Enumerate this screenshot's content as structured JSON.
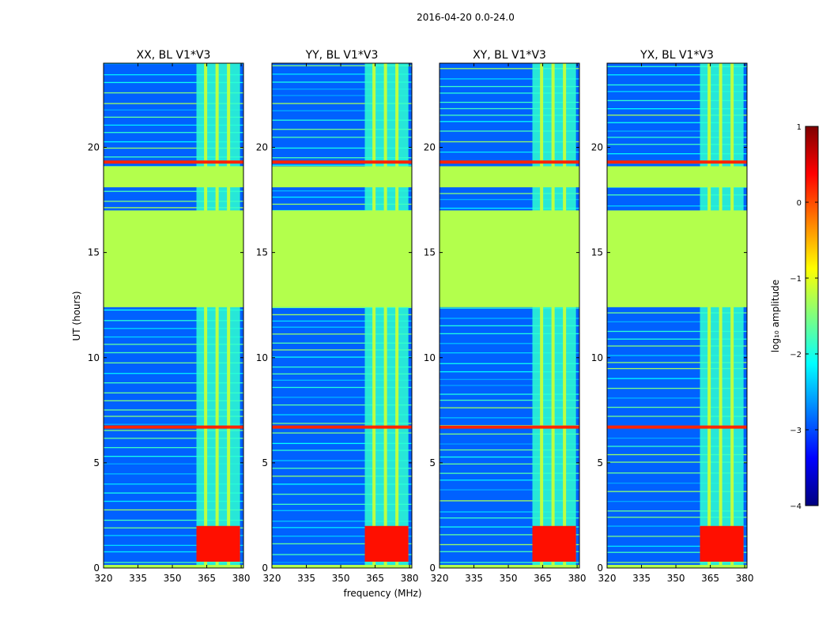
{
  "suptitle": "2016-04-20 0.0-24.0",
  "chart_data": {
    "type": "heatmap",
    "title": "2016-04-20 0.0-24.0",
    "xlabel": "frequency (MHz)",
    "ylabel": "UT (hours)",
    "xlim": [
      320,
      381
    ],
    "ylim": [
      0,
      24
    ],
    "x_ticks": [
      320,
      335,
      350,
      365,
      380
    ],
    "y_ticks": [
      0,
      5,
      10,
      15,
      20
    ],
    "panels": [
      {
        "title": "XX, BL V1*V3",
        "bright_start_hour": 0.3
      },
      {
        "title": "YY, BL V1*V3",
        "bright_start_hour": 0.3
      },
      {
        "title": "XY, BL V1*V3",
        "bright_start_hour": 0.3
      },
      {
        "title": "YX, BL V1*V3",
        "bright_start_hour": 0.3
      }
    ],
    "flagged_regions_hours": [
      [
        12.4,
        17.0
      ],
      [
        18.1,
        19.1
      ]
    ],
    "rfi_band_mhz": [
      360.5,
      379.5
    ],
    "rfi_channels_mhz": [
      364.5,
      369.5,
      374.5
    ],
    "strong_lines_hours": [
      6.7,
      19.3
    ],
    "colorbar": {
      "label": "log₁₀ amplitude",
      "min": -4,
      "max": 1,
      "ticks": [
        1,
        0,
        -1,
        -2,
        -3,
        -4
      ],
      "colors": [
        "#00007f",
        "#0000ff",
        "#007fff",
        "#00ffff",
        "#7fff7f",
        "#ffff00",
        "#ff7f00",
        "#ff0000",
        "#7f0000"
      ]
    }
  }
}
